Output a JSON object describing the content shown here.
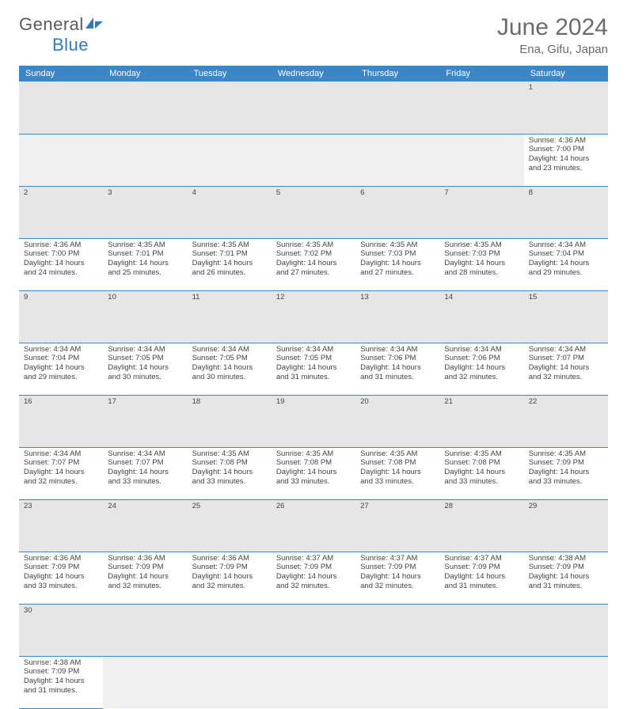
{
  "logo": {
    "part1": "General",
    "part2": "Blue"
  },
  "title": "June 2024",
  "location": "Ena, Gifu, Japan",
  "colors": {
    "header_bg": "#3a86c8",
    "header_text": "#ffffff",
    "daynum_bg": "#e6e6e6",
    "border": "#3a86c8",
    "title_color": "#6b6b6b",
    "logo_gray": "#5a5a5a",
    "logo_blue": "#2f7bbf"
  },
  "weekdays": [
    "Sunday",
    "Monday",
    "Tuesday",
    "Wednesday",
    "Thursday",
    "Friday",
    "Saturday"
  ],
  "weeks": [
    [
      null,
      null,
      null,
      null,
      null,
      null,
      {
        "d": "1",
        "sr": "Sunrise: 4:36 AM",
        "ss": "Sunset: 7:00 PM",
        "dl1": "Daylight: 14 hours",
        "dl2": "and 23 minutes."
      }
    ],
    [
      {
        "d": "2",
        "sr": "Sunrise: 4:36 AM",
        "ss": "Sunset: 7:00 PM",
        "dl1": "Daylight: 14 hours",
        "dl2": "and 24 minutes."
      },
      {
        "d": "3",
        "sr": "Sunrise: 4:35 AM",
        "ss": "Sunset: 7:01 PM",
        "dl1": "Daylight: 14 hours",
        "dl2": "and 25 minutes."
      },
      {
        "d": "4",
        "sr": "Sunrise: 4:35 AM",
        "ss": "Sunset: 7:01 PM",
        "dl1": "Daylight: 14 hours",
        "dl2": "and 26 minutes."
      },
      {
        "d": "5",
        "sr": "Sunrise: 4:35 AM",
        "ss": "Sunset: 7:02 PM",
        "dl1": "Daylight: 14 hours",
        "dl2": "and 27 minutes."
      },
      {
        "d": "6",
        "sr": "Sunrise: 4:35 AM",
        "ss": "Sunset: 7:03 PM",
        "dl1": "Daylight: 14 hours",
        "dl2": "and 27 minutes."
      },
      {
        "d": "7",
        "sr": "Sunrise: 4:35 AM",
        "ss": "Sunset: 7:03 PM",
        "dl1": "Daylight: 14 hours",
        "dl2": "and 28 minutes."
      },
      {
        "d": "8",
        "sr": "Sunrise: 4:34 AM",
        "ss": "Sunset: 7:04 PM",
        "dl1": "Daylight: 14 hours",
        "dl2": "and 29 minutes."
      }
    ],
    [
      {
        "d": "9",
        "sr": "Sunrise: 4:34 AM",
        "ss": "Sunset: 7:04 PM",
        "dl1": "Daylight: 14 hours",
        "dl2": "and 29 minutes."
      },
      {
        "d": "10",
        "sr": "Sunrise: 4:34 AM",
        "ss": "Sunset: 7:05 PM",
        "dl1": "Daylight: 14 hours",
        "dl2": "and 30 minutes."
      },
      {
        "d": "11",
        "sr": "Sunrise: 4:34 AM",
        "ss": "Sunset: 7:05 PM",
        "dl1": "Daylight: 14 hours",
        "dl2": "and 30 minutes."
      },
      {
        "d": "12",
        "sr": "Sunrise: 4:34 AM",
        "ss": "Sunset: 7:05 PM",
        "dl1": "Daylight: 14 hours",
        "dl2": "and 31 minutes."
      },
      {
        "d": "13",
        "sr": "Sunrise: 4:34 AM",
        "ss": "Sunset: 7:06 PM",
        "dl1": "Daylight: 14 hours",
        "dl2": "and 31 minutes."
      },
      {
        "d": "14",
        "sr": "Sunrise: 4:34 AM",
        "ss": "Sunset: 7:06 PM",
        "dl1": "Daylight: 14 hours",
        "dl2": "and 32 minutes."
      },
      {
        "d": "15",
        "sr": "Sunrise: 4:34 AM",
        "ss": "Sunset: 7:07 PM",
        "dl1": "Daylight: 14 hours",
        "dl2": "and 32 minutes."
      }
    ],
    [
      {
        "d": "16",
        "sr": "Sunrise: 4:34 AM",
        "ss": "Sunset: 7:07 PM",
        "dl1": "Daylight: 14 hours",
        "dl2": "and 32 minutes."
      },
      {
        "d": "17",
        "sr": "Sunrise: 4:34 AM",
        "ss": "Sunset: 7:07 PM",
        "dl1": "Daylight: 14 hours",
        "dl2": "and 33 minutes."
      },
      {
        "d": "18",
        "sr": "Sunrise: 4:35 AM",
        "ss": "Sunset: 7:08 PM",
        "dl1": "Daylight: 14 hours",
        "dl2": "and 33 minutes."
      },
      {
        "d": "19",
        "sr": "Sunrise: 4:35 AM",
        "ss": "Sunset: 7:08 PM",
        "dl1": "Daylight: 14 hours",
        "dl2": "and 33 minutes."
      },
      {
        "d": "20",
        "sr": "Sunrise: 4:35 AM",
        "ss": "Sunset: 7:08 PM",
        "dl1": "Daylight: 14 hours",
        "dl2": "and 33 minutes."
      },
      {
        "d": "21",
        "sr": "Sunrise: 4:35 AM",
        "ss": "Sunset: 7:08 PM",
        "dl1": "Daylight: 14 hours",
        "dl2": "and 33 minutes."
      },
      {
        "d": "22",
        "sr": "Sunrise: 4:35 AM",
        "ss": "Sunset: 7:09 PM",
        "dl1": "Daylight: 14 hours",
        "dl2": "and 33 minutes."
      }
    ],
    [
      {
        "d": "23",
        "sr": "Sunrise: 4:36 AM",
        "ss": "Sunset: 7:09 PM",
        "dl1": "Daylight: 14 hours",
        "dl2": "and 33 minutes."
      },
      {
        "d": "24",
        "sr": "Sunrise: 4:36 AM",
        "ss": "Sunset: 7:09 PM",
        "dl1": "Daylight: 14 hours",
        "dl2": "and 32 minutes."
      },
      {
        "d": "25",
        "sr": "Sunrise: 4:36 AM",
        "ss": "Sunset: 7:09 PM",
        "dl1": "Daylight: 14 hours",
        "dl2": "and 32 minutes."
      },
      {
        "d": "26",
        "sr": "Sunrise: 4:37 AM",
        "ss": "Sunset: 7:09 PM",
        "dl1": "Daylight: 14 hours",
        "dl2": "and 32 minutes."
      },
      {
        "d": "27",
        "sr": "Sunrise: 4:37 AM",
        "ss": "Sunset: 7:09 PM",
        "dl1": "Daylight: 14 hours",
        "dl2": "and 32 minutes."
      },
      {
        "d": "28",
        "sr": "Sunrise: 4:37 AM",
        "ss": "Sunset: 7:09 PM",
        "dl1": "Daylight: 14 hours",
        "dl2": "and 31 minutes."
      },
      {
        "d": "29",
        "sr": "Sunrise: 4:38 AM",
        "ss": "Sunset: 7:09 PM",
        "dl1": "Daylight: 14 hours",
        "dl2": "and 31 minutes."
      }
    ],
    [
      {
        "d": "30",
        "sr": "Sunrise: 4:38 AM",
        "ss": "Sunset: 7:09 PM",
        "dl1": "Daylight: 14 hours",
        "dl2": "and 31 minutes."
      },
      null,
      null,
      null,
      null,
      null,
      null
    ]
  ]
}
